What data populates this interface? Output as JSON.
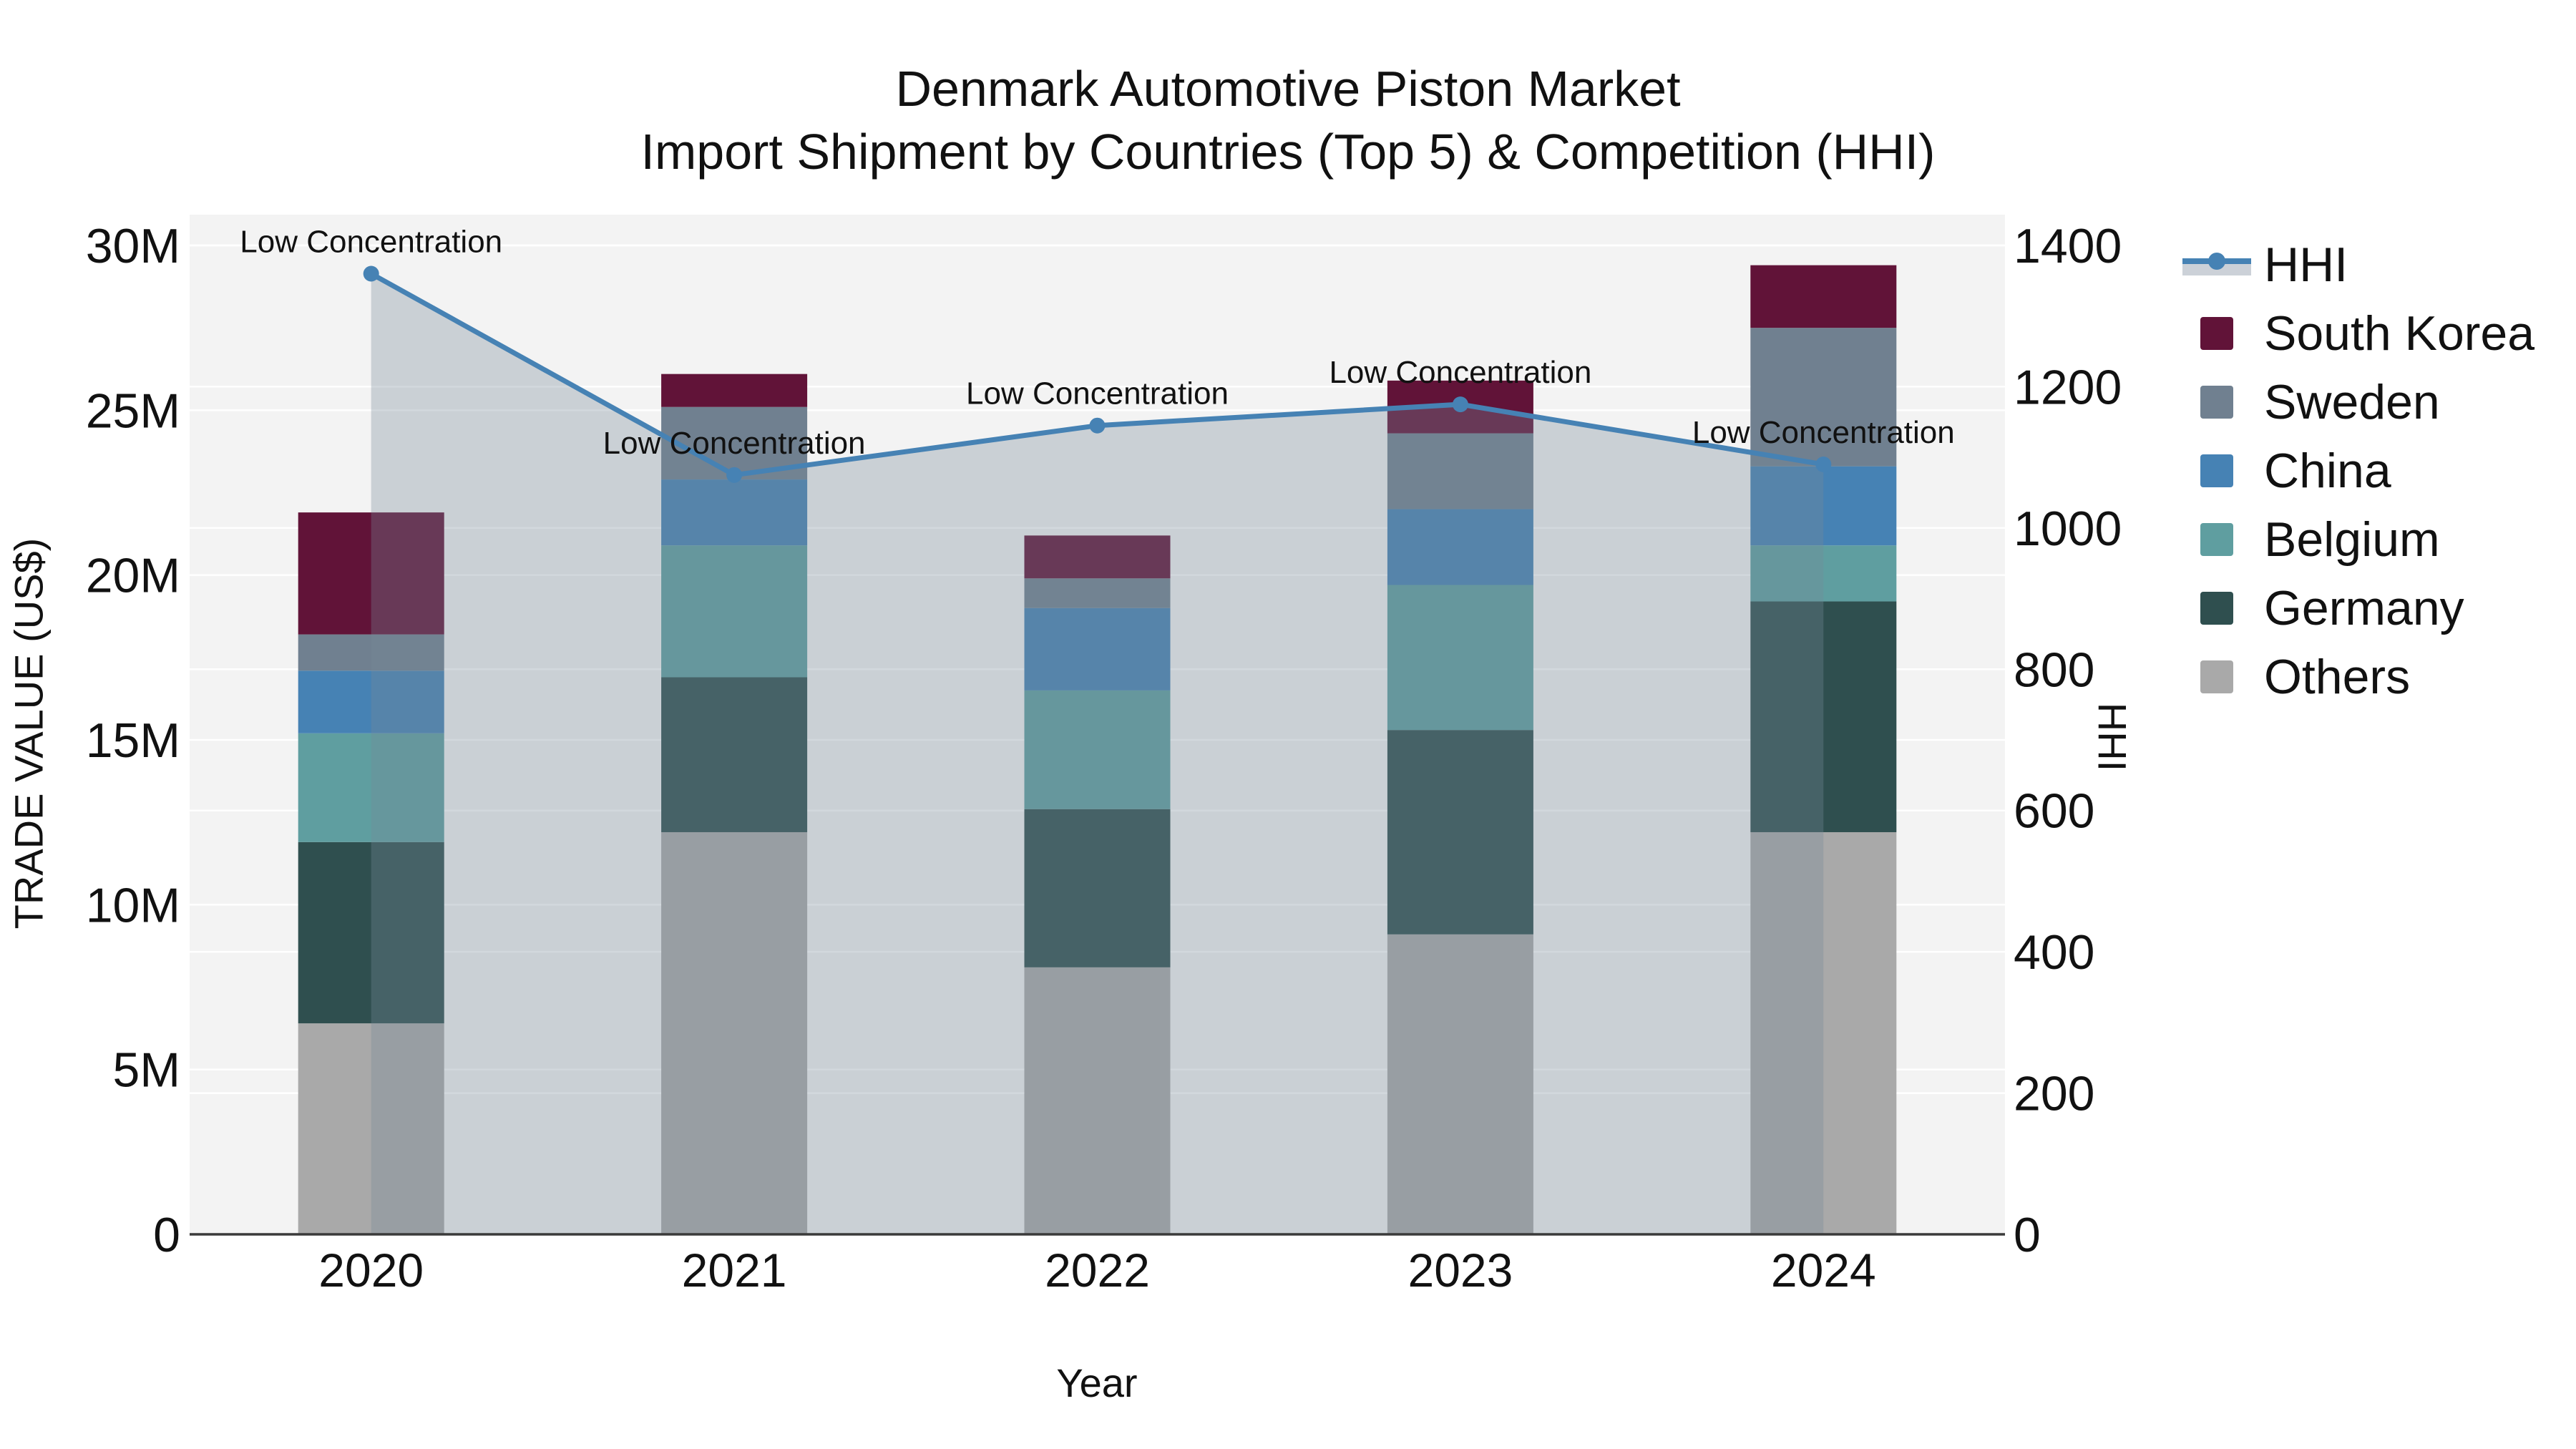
{
  "title": {
    "line1": "Denmark Automotive Piston Market",
    "line2": "Import Shipment by Countries (Top 5) & Competition (HHI)"
  },
  "colors": {
    "background": "#ffffff",
    "plot_background": "#f3f3f3",
    "grid": "#ffffff",
    "axis_line": "#3a3a3a",
    "text": "#111111",
    "hhi_line": "#4682b4",
    "hhi_marker": "#4682b4",
    "hhi_area_fill": "rgba(119,136,153,0.33)",
    "south_korea": "#611338",
    "sweden": "#708090",
    "china": "#4682b4",
    "belgium": "#5f9ea0",
    "germany": "#2f4f4f",
    "others": "#a9a9a9"
  },
  "legend": {
    "items": [
      {
        "label": "HHI",
        "type": "line",
        "color": "#4682b4",
        "fill": "#ccd1d8"
      },
      {
        "label": "South Korea",
        "type": "swatch",
        "color": "#611338"
      },
      {
        "label": "Sweden",
        "type": "swatch",
        "color": "#708090"
      },
      {
        "label": "China",
        "type": "swatch",
        "color": "#4682b4"
      },
      {
        "label": "Belgium",
        "type": "swatch",
        "color": "#5f9ea0"
      },
      {
        "label": "Germany",
        "type": "swatch",
        "color": "#2f4f4f"
      },
      {
        "label": "Others",
        "type": "swatch",
        "color": "#a9a9a9"
      }
    ]
  },
  "chart_data": {
    "type": "bar+line",
    "title": "Denmark Automotive Piston Market — Import Shipment by Countries (Top 5) & Competition (HHI)",
    "categories": [
      "2020",
      "2021",
      "2022",
      "2023",
      "2024"
    ],
    "bar_value_unit": "US$ millions",
    "stack_order_bottom_to_top": [
      "Others",
      "Germany",
      "Belgium",
      "China",
      "Sweden",
      "South Korea"
    ],
    "series": [
      {
        "name": "Others",
        "color": "#a9a9a9",
        "values": [
          6.4,
          12.2,
          8.1,
          9.1,
          12.2
        ]
      },
      {
        "name": "Germany",
        "color": "#2f4f4f",
        "values": [
          5.5,
          4.7,
          4.8,
          6.2,
          7.0
        ]
      },
      {
        "name": "Belgium",
        "color": "#5f9ea0",
        "values": [
          3.3,
          4.0,
          3.6,
          4.4,
          1.7
        ]
      },
      {
        "name": "China",
        "color": "#4682b4",
        "values": [
          1.9,
          2.0,
          2.5,
          2.3,
          2.4
        ]
      },
      {
        "name": "Sweden",
        "color": "#708090",
        "values": [
          1.1,
          2.2,
          0.9,
          2.3,
          4.2
        ]
      },
      {
        "name": "South Korea",
        "color": "#611338",
        "values": [
          3.7,
          1.0,
          1.3,
          1.6,
          1.9
        ]
      }
    ],
    "bar_totals": [
      21.9,
      26.1,
      21.2,
      25.9,
      29.4
    ],
    "line_series": {
      "name": "HHI",
      "axis": "right",
      "color": "#4682b4",
      "fill": "tozeroy",
      "marker": "circle",
      "values": [
        1360,
        1075,
        1145,
        1175,
        1090
      ]
    },
    "annotations": [
      {
        "x": "2020",
        "text": "Low Concentration"
      },
      {
        "x": "2021",
        "text": "Low Concentration"
      },
      {
        "x": "2022",
        "text": "Low Concentration"
      },
      {
        "x": "2023",
        "text": "Low Concentration"
      },
      {
        "x": "2024",
        "text": "Low Concentration"
      }
    ],
    "xlabel": "Year",
    "y_left": {
      "title": "TRADE VALUE (US$)",
      "max": 30,
      "ticks": [
        0,
        5,
        10,
        15,
        20,
        25,
        30
      ],
      "tick_labels": [
        "0",
        "5M",
        "10M",
        "15M",
        "20M",
        "25M",
        "30M"
      ]
    },
    "y_right": {
      "title": "HHI",
      "max": 1400,
      "ticks": [
        0,
        200,
        400,
        600,
        800,
        1000,
        1200,
        1400
      ],
      "tick_labels": [
        "0",
        "200",
        "400",
        "600",
        "800",
        "1000",
        "1200",
        "1400"
      ]
    },
    "grid": true,
    "legend_position": "right"
  }
}
